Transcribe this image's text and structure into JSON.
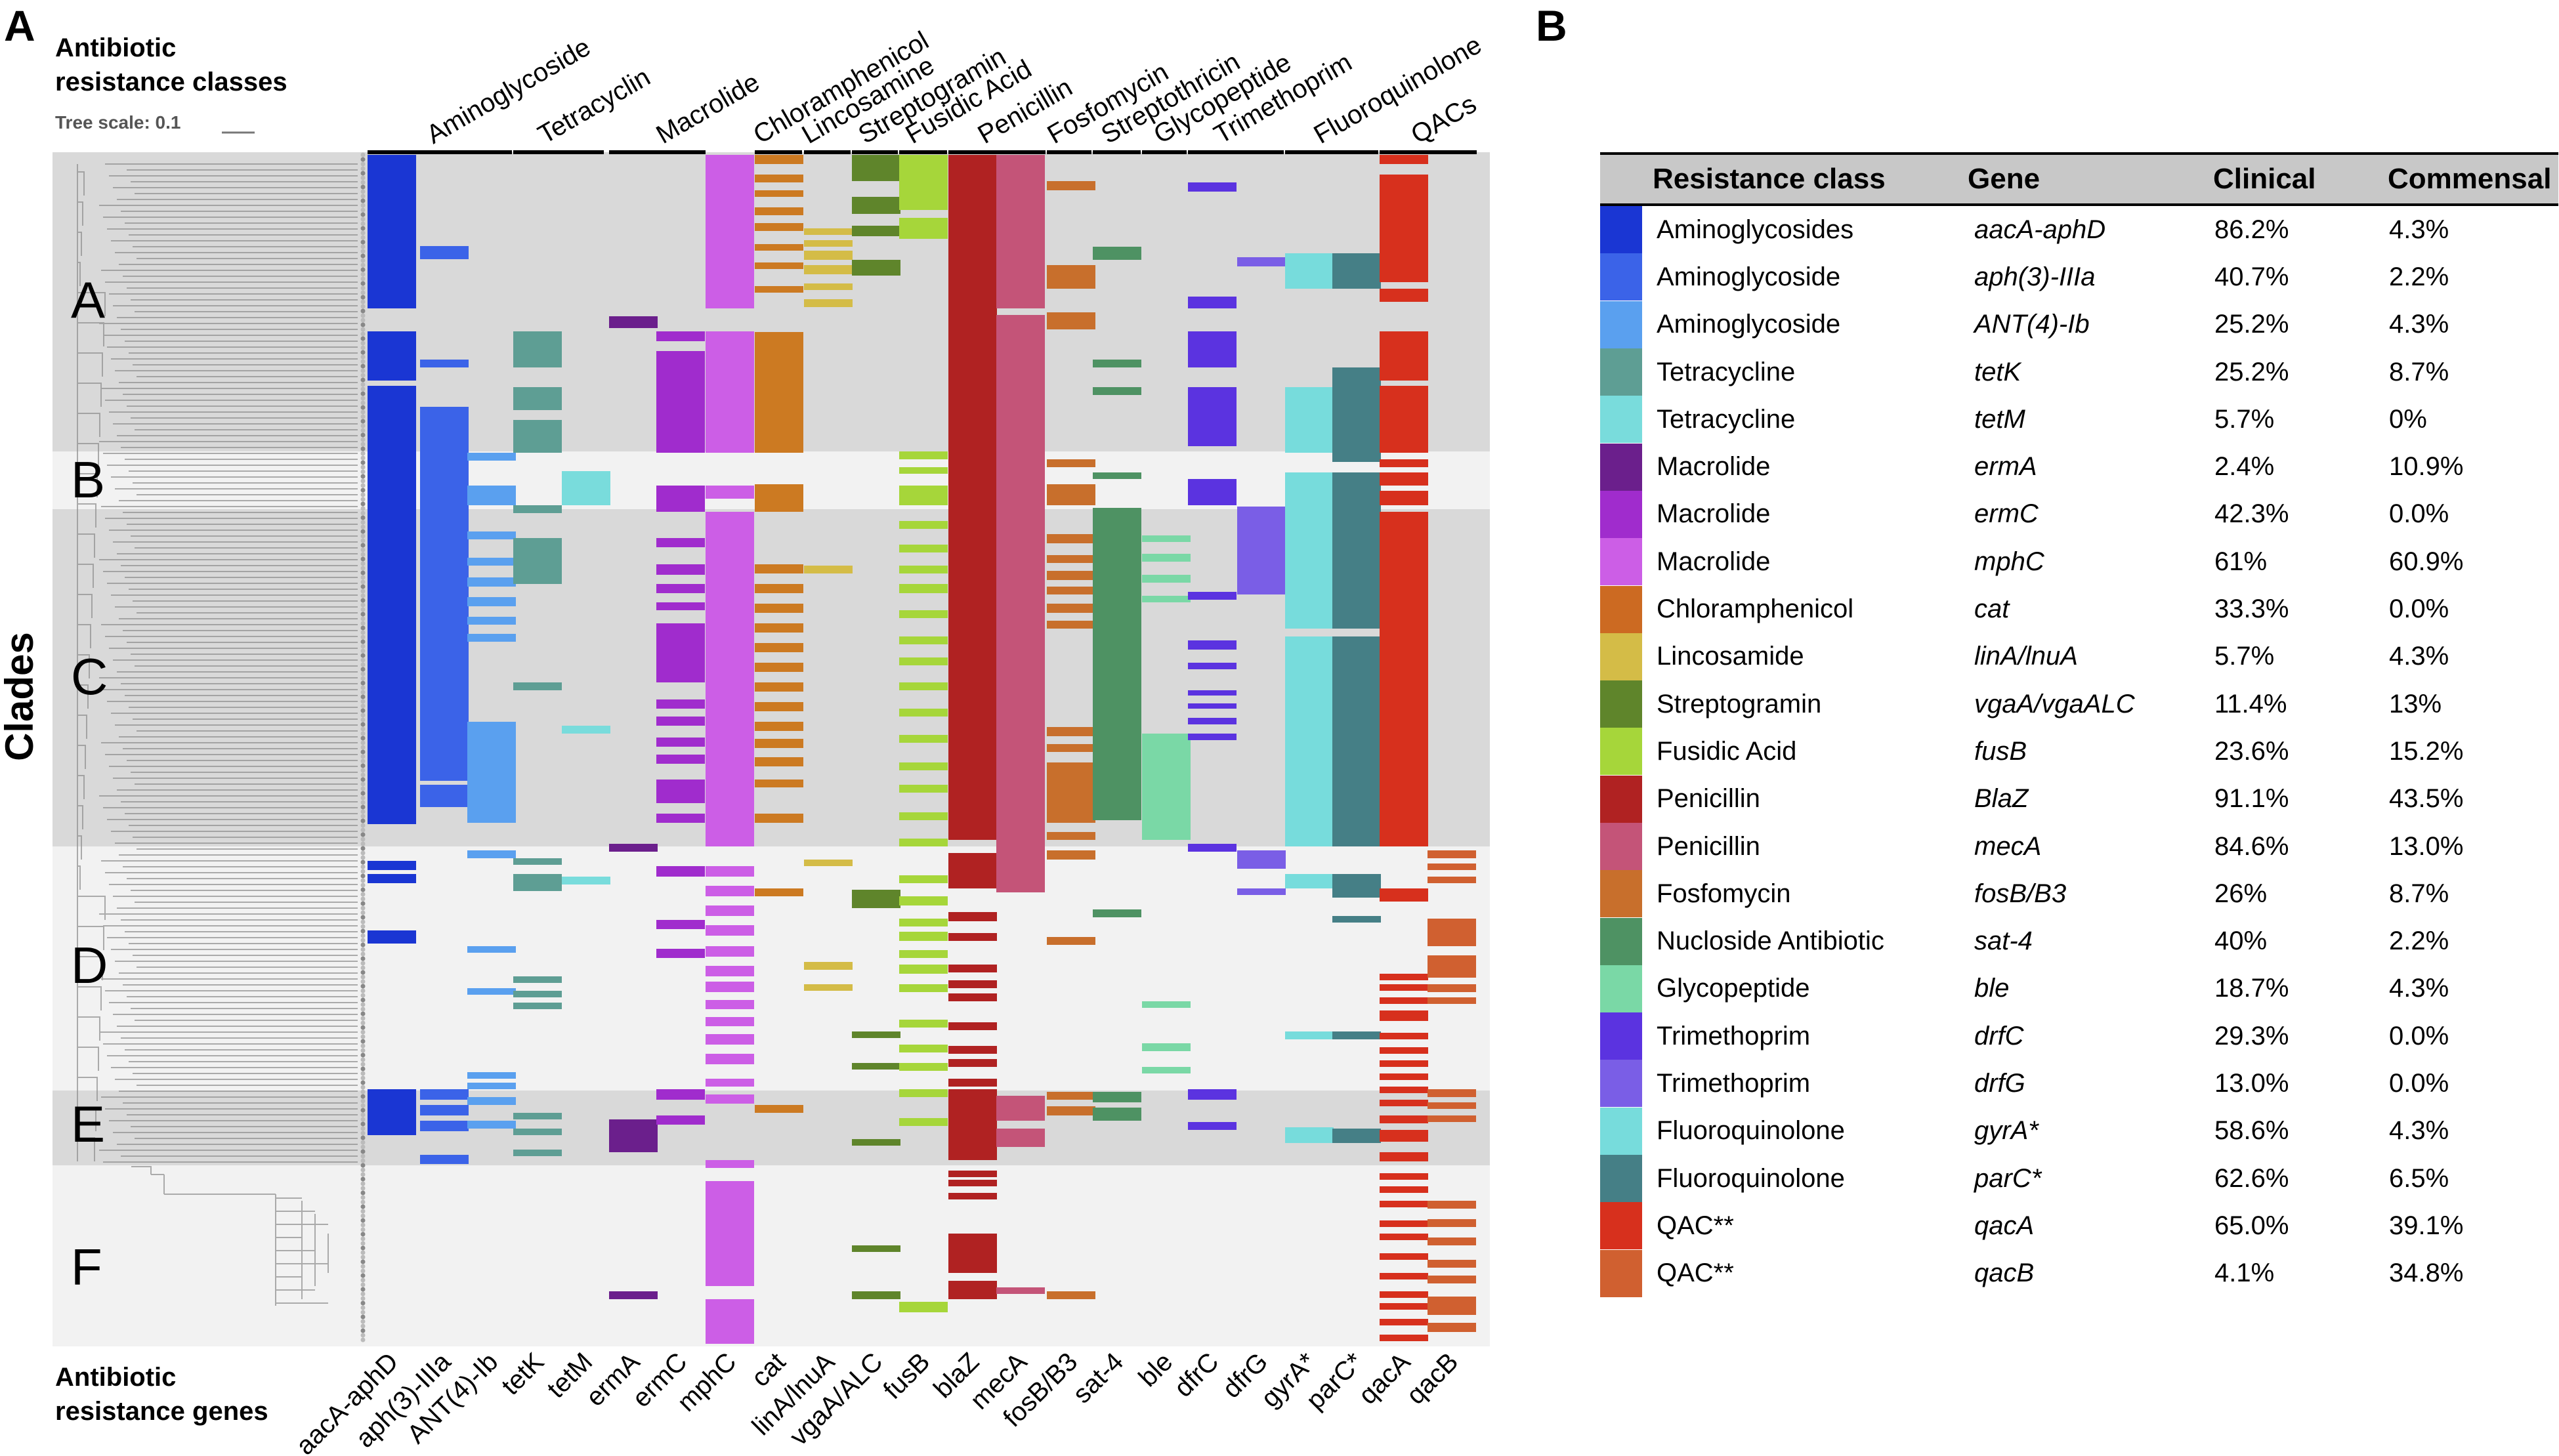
{
  "panel_a": {
    "letter": "A",
    "classes_heading": [
      "Antibiotic",
      "resistance classes"
    ],
    "genes_heading": [
      "Antibiotic",
      "resistance genes"
    ],
    "tree_scale_label": "Tree scale: 0.1",
    "clades_title": "Clades",
    "clade_labels": [
      "A",
      "B",
      "C",
      "D",
      "E",
      "F"
    ],
    "class_headers": [
      "Aminoglycoside",
      "Tetracyclin",
      "Macrolide",
      "Chloramphenicol",
      "Lincosamine",
      "Streptogramin",
      "Fusidic Acid",
      "Penicillin",
      "Fosfomycin",
      "Streptothricin",
      "Glycopeptide",
      "Trimethoprim",
      "Fluoroquinolone",
      "QACs"
    ],
    "gene_names": [
      "aacA-aphD",
      "aph(3)-IIIa",
      "ANT(4)-Ib",
      "tetK",
      "tetM",
      "ermA",
      "ermC",
      "mphC",
      "cat",
      "linA/lnuA",
      "vgaA/ALC",
      "fusB",
      "blaZ",
      "mecA",
      "fosB/B3",
      "sat-4",
      "ble",
      "dfrC",
      "dfrG",
      "gyrA*",
      "parC*",
      "qacA",
      "qacB"
    ],
    "gene_colors": [
      "#1a36d3",
      "#3b63e8",
      "#5aa0ef",
      "#5e9e94",
      "#79dcdc",
      "#6b1f8c",
      "#a02ccd",
      "#cc5ee6",
      "#cc7a22",
      "#d4bc47",
      "#5f852b",
      "#a6d63a",
      "#b02222",
      "#c45478",
      "#c86f2c",
      "#4e9263",
      "#7ad8a6",
      "#5b33e0",
      "#7a5ee6",
      "#77dcdc",
      "#457f86",
      "#d7301d",
      "#d06030"
    ]
  },
  "panel_b": {
    "letter": "B",
    "headers": [
      "Resistance class",
      "Gene",
      "Clinical",
      "Commensal"
    ],
    "rows": [
      {
        "color": "#1a36d3",
        "cls": "Aminoglycosides",
        "gene": "aacA-aphD",
        "clinical": "86.2%",
        "commensal": "4.3%"
      },
      {
        "color": "#3b63e8",
        "cls": "Aminoglycoside",
        "gene": "aph(3)-IIIa",
        "clinical": "40.7%",
        "commensal": "2.2%"
      },
      {
        "color": "#5aa0ef",
        "cls": "Aminoglycoside",
        "gene": "ANT(4)-Ib",
        "clinical": "25.2%",
        "commensal": "4.3%"
      },
      {
        "color": "#5e9e94",
        "cls": "Tetracycline",
        "gene": "tetK",
        "clinical": "25.2%",
        "commensal": "8.7%"
      },
      {
        "color": "#79dcdc",
        "cls": "Tetracycline",
        "gene": "tetM",
        "clinical": "5.7%",
        "commensal": "0%"
      },
      {
        "color": "#6b1f8c",
        "cls": "Macrolide",
        "gene": "ermA",
        "clinical": "2.4%",
        "commensal": "10.9%"
      },
      {
        "color": "#a02ccd",
        "cls": "Macrolide",
        "gene": "ermC",
        "clinical": "42.3%",
        "commensal": "0.0%"
      },
      {
        "color": "#cc5ee6",
        "cls": "Macrolide",
        "gene": "mphC",
        "clinical": "61%",
        "commensal": "60.9%"
      },
      {
        "color": "#cc6a22",
        "cls": "Chloramphenicol",
        "gene": "cat",
        "clinical": "33.3%",
        "commensal": "0.0%"
      },
      {
        "color": "#d4bc47",
        "cls": "Lincosamide",
        "gene": "linA/lnuA",
        "clinical": "5.7%",
        "commensal": "4.3%"
      },
      {
        "color": "#5f852b",
        "cls": "Streptogramin",
        "gene": "vgaA/vgaALC",
        "clinical": "11.4%",
        "commensal": "13%"
      },
      {
        "color": "#a6d63a",
        "cls": "Fusidic Acid",
        "gene": "fusB",
        "clinical": "23.6%",
        "commensal": "15.2%"
      },
      {
        "color": "#b02222",
        "cls": "Penicillin",
        "gene": "BlaZ",
        "clinical": "91.1%",
        "commensal": "43.5%"
      },
      {
        "color": "#c45478",
        "cls": "Penicillin",
        "gene": "mecA",
        "clinical": "84.6%",
        "commensal": "13.0%"
      },
      {
        "color": "#c86f2c",
        "cls": "Fosfomycin",
        "gene": "fosB/B3",
        "clinical": "26%",
        "commensal": "8.7%"
      },
      {
        "color": "#4e9263",
        "cls": "Nucloside Antibiotic",
        "gene": "sat-4",
        "clinical": "40%",
        "commensal": "2.2%"
      },
      {
        "color": "#7ad8a6",
        "cls": "Glycopeptide",
        "gene": "ble",
        "clinical": "18.7%",
        "commensal": "4.3%"
      },
      {
        "color": "#5b33e0",
        "cls": "Trimethoprim",
        "gene": "drfC",
        "clinical": "29.3%",
        "commensal": "0.0%"
      },
      {
        "color": "#7a5ee6",
        "cls": "Trimethoprim",
        "gene": "drfG",
        "clinical": "13.0%",
        "commensal": "0.0%"
      },
      {
        "color": "#77dcdc",
        "cls": "Fluoroquinolone",
        "gene": "gyrA*",
        "clinical": "58.6%",
        "commensal": "4.3%"
      },
      {
        "color": "#457f86",
        "cls": "Fluoroquinolone",
        "gene": "parC*",
        "clinical": "62.6%",
        "commensal": "6.5%"
      },
      {
        "color": "#d7301d",
        "cls": "QAC**",
        "gene": "qacA",
        "clinical": "65.0%",
        "commensal": "39.1%"
      },
      {
        "color": "#d06030",
        "cls": "QAC**",
        "gene": "qacB",
        "clinical": "4.1%",
        "commensal": "34.8%"
      }
    ]
  }
}
